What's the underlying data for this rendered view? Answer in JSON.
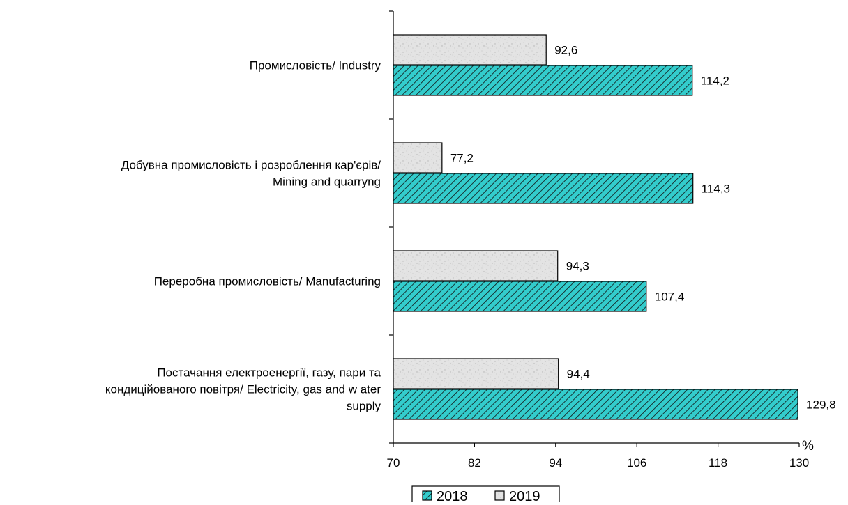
{
  "chart_data": {
    "type": "bar",
    "orientation": "horizontal",
    "categories": [
      [
        "Промисловість/ Industry"
      ],
      [
        "Добувна промисловість і розроблення кар'єрів/",
        "Mining and quarryng"
      ],
      [
        "Переробна промисловість/ Manufacturing"
      ],
      [
        "Постачання електроенергії, газу, пари та",
        "кондиційованого повітря/ Electricity, gas and w ater",
        "supply"
      ]
    ],
    "series": [
      {
        "name": "2019",
        "values": [
          92.6,
          77.2,
          94.3,
          94.4
        ],
        "value_labels": [
          "92,6",
          "77,2",
          "94,3",
          "94,4"
        ],
        "fill": "#e6e6e6",
        "pattern": "speckled"
      },
      {
        "name": "2018",
        "values": [
          114.2,
          114.3,
          107.4,
          129.8
        ],
        "value_labels": [
          "114,2",
          "114,3",
          "107,4",
          "129,8"
        ],
        "fill": "#33cccc",
        "pattern": "diagonal-hatch"
      }
    ],
    "xlim": [
      70,
      130
    ],
    "ticks": [
      70,
      82,
      94,
      106,
      118,
      130
    ],
    "tick_labels": [
      "70",
      "82",
      "94",
      "106",
      "118",
      "130"
    ],
    "unit": "%",
    "grid": false,
    "legend": {
      "placement": "bottom",
      "items": [
        {
          "label": "2018",
          "series": "2018"
        },
        {
          "label": "2019",
          "series": "2019"
        }
      ]
    }
  }
}
